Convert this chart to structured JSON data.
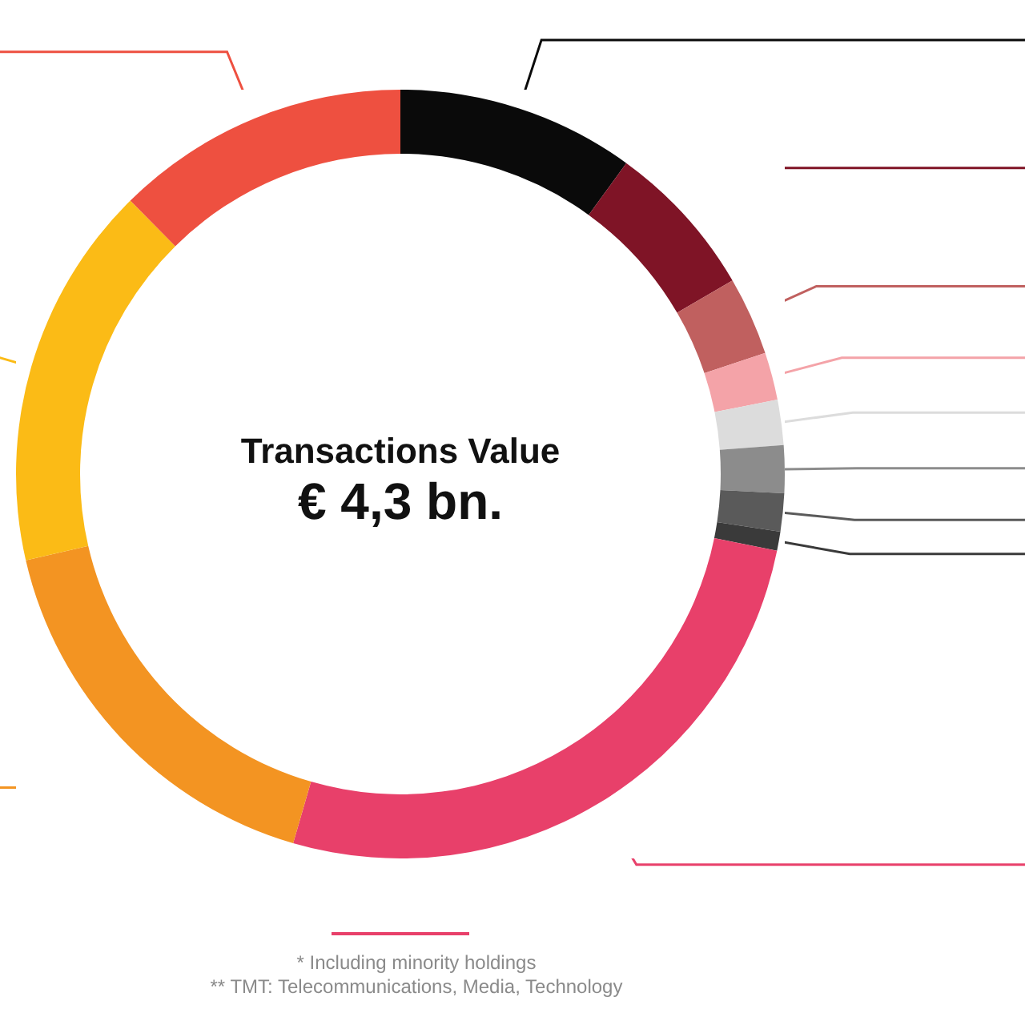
{
  "chart_data": {
    "type": "donut",
    "title": "Transactions Value",
    "subtitle": "€ 4,3 bn.",
    "categories": [
      null,
      null,
      null,
      null,
      null,
      null,
      null,
      null,
      null,
      null,
      null,
      null
    ],
    "values": [
      10,
      6.6,
      3.3,
      2,
      1.9,
      2,
      1.6,
      0.8,
      26.3,
      16.9,
      16.2,
      12.4
    ],
    "colors": [
      "#0a0a0a",
      "#7f1426",
      "#c0605f",
      "#f4a3a8",
      "#dcdcdc",
      "#8c8c8c",
      "#5a5a5a",
      "#3a3a3a",
      "#e8406a",
      "#f39422",
      "#fbbb16",
      "#ee5040"
    ],
    "annotations": [
      "* Including minority holdings",
      "** TMT: Telecommunications, Media, Technology"
    ]
  }
}
